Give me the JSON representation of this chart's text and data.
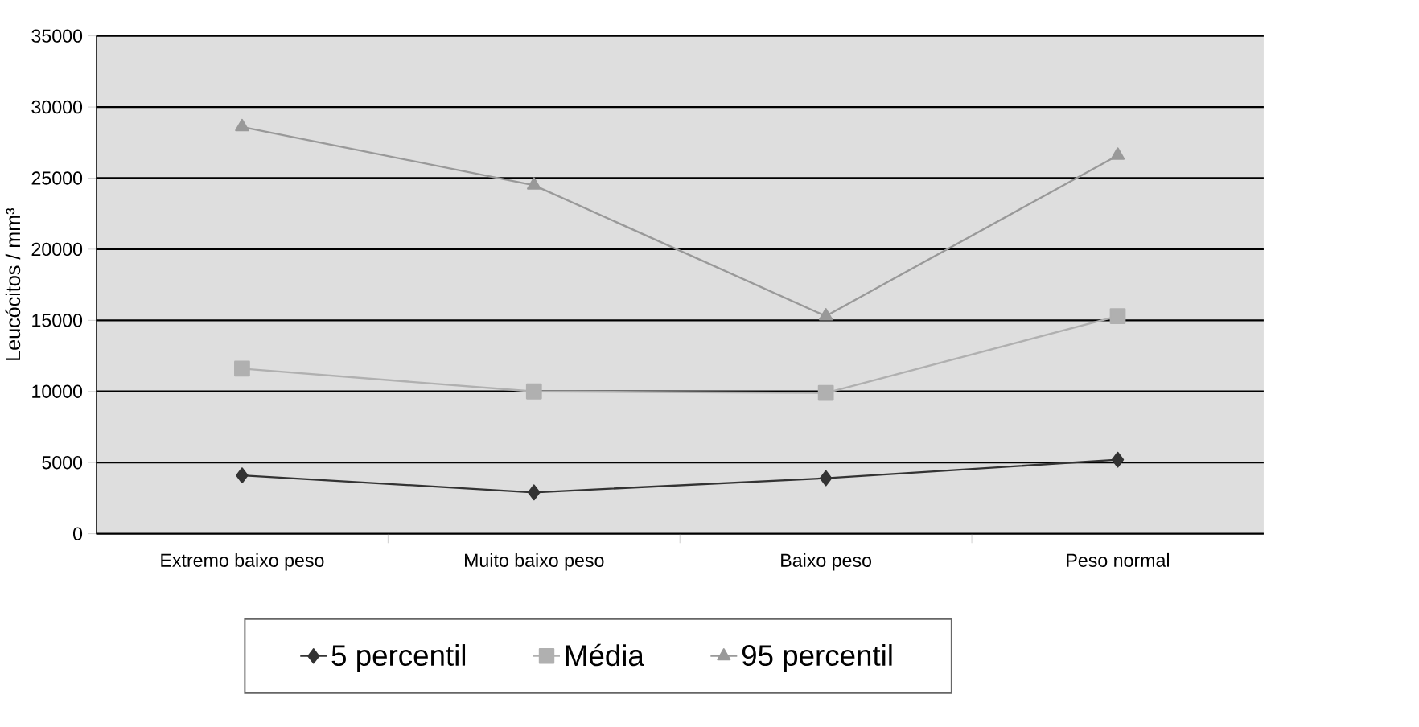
{
  "chart_data": {
    "type": "line",
    "ylabel": "Leucócitos / mm³",
    "categories": [
      "Extremo baixo peso",
      "Muito baixo peso",
      "Baixo peso",
      "Peso normal"
    ],
    "series": [
      {
        "name": "5 percentil",
        "color": "#333333",
        "marker": "diamond",
        "values": [
          4100,
          2900,
          3900,
          5200
        ]
      },
      {
        "name": "Média",
        "color": "#b0b0b0",
        "marker": "square",
        "values": [
          11600,
          10000,
          9900,
          15300
        ]
      },
      {
        "name": "95 percentil",
        "color": "#999999",
        "marker": "triangle",
        "values": [
          28600,
          24500,
          15300,
          26600
        ]
      }
    ],
    "ylim": [
      0,
      35000
    ],
    "yticks": [
      0,
      5000,
      10000,
      15000,
      20000,
      25000,
      30000,
      35000
    ],
    "grid": "y",
    "legend": "bottom"
  }
}
